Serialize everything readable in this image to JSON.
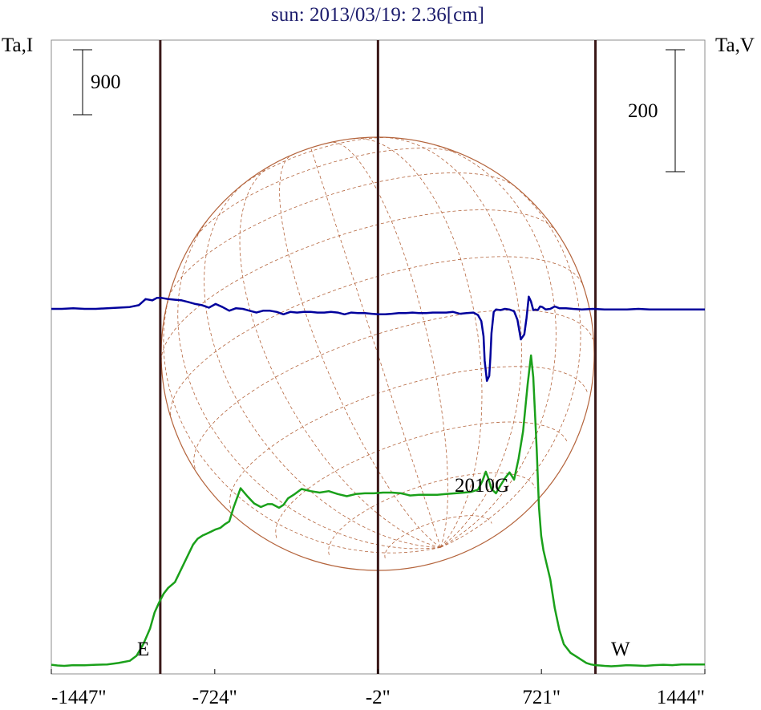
{
  "chart_data": {
    "type": "line",
    "title": "sun: 2013/03/19: 2.36[cm]",
    "left_axis_label": "Ta,I",
    "right_axis_label": "Ta,V",
    "x_tick_labels": [
      "-1447\"",
      "-724\"",
      "-2\"",
      "721\"",
      "1444\""
    ],
    "x_ticks": [
      -1447,
      -724,
      -2,
      721,
      1444
    ],
    "xlim": [
      -1447,
      1444
    ],
    "scale_bar_I": "900",
    "scale_bar_V": "200",
    "limb_markers": [
      {
        "label": "E",
        "x": -965
      },
      {
        "label": "W",
        "x": 960
      }
    ],
    "center_line_x": -2,
    "annotations": [
      {
        "text": "2010G",
        "x": 490
      }
    ],
    "colors": {
      "stokes_I": "#1aa01a",
      "stokes_V": "#00009c",
      "limb_lines": "#3a1818",
      "disk_grid": "#b4643c",
      "title": "#1c1c6c"
    },
    "series": [
      {
        "name": "Stokes I",
        "x": [
          -1447,
          -1420,
          -1390,
          -1350,
          -1300,
          -1250,
          -1200,
          -1150,
          -1100,
          -1070,
          -1040,
          -1010,
          -990,
          -970,
          -950,
          -930,
          -900,
          -860,
          -820,
          -800,
          -775,
          -760,
          -740,
          -720,
          -700,
          -680,
          -660,
          -640,
          -610,
          -580,
          -550,
          -520,
          -490,
          -470,
          -440,
          -420,
          -400,
          -370,
          -340,
          -300,
          -260,
          -220,
          -180,
          -140,
          -100,
          -60,
          -20,
          20,
          60,
          100,
          140,
          180,
          220,
          260,
          300,
          340,
          380,
          410,
          440,
          460,
          475,
          485,
          500,
          520,
          540,
          560,
          580,
          600,
          620,
          640,
          660,
          675,
          685,
          700,
          710,
          720,
          730,
          745,
          760,
          780,
          800,
          820,
          850,
          880,
          900,
          920,
          940,
          960,
          980,
          1000,
          1030,
          1060,
          1100,
          1140,
          1180,
          1220,
          1260,
          1300,
          1340,
          1380,
          1410,
          1444
        ],
        "y": [
          15,
          5,
          0,
          10,
          8,
          15,
          20,
          40,
          70,
          140,
          300,
          520,
          740,
          880,
          1000,
          1080,
          1160,
          1420,
          1680,
          1760,
          1810,
          1830,
          1860,
          1890,
          1910,
          1960,
          2000,
          2200,
          2460,
          2350,
          2250,
          2200,
          2240,
          2240,
          2190,
          2230,
          2320,
          2380,
          2450,
          2420,
          2400,
          2420,
          2380,
          2350,
          2380,
          2390,
          2390,
          2400,
          2400,
          2390,
          2360,
          2370,
          2370,
          2370,
          2380,
          2390,
          2400,
          2410,
          2440,
          2560,
          2690,
          2610,
          2450,
          2390,
          2500,
          2600,
          2680,
          2580,
          2870,
          3250,
          3900,
          4300,
          4000,
          3000,
          2200,
          1800,
          1600,
          1400,
          1200,
          800,
          500,
          300,
          180,
          120,
          80,
          40,
          20,
          10,
          5,
          0,
          -5,
          0,
          10,
          5,
          0,
          10,
          15,
          10,
          20,
          20,
          20,
          20
        ]
      },
      {
        "name": "Stokes V",
        "x": [
          -1447,
          -1400,
          -1350,
          -1300,
          -1250,
          -1200,
          -1150,
          -1100,
          -1060,
          -1030,
          -1000,
          -980,
          -960,
          -930,
          -900,
          -870,
          -840,
          -810,
          -780,
          -750,
          -720,
          -690,
          -660,
          -630,
          -600,
          -570,
          -540,
          -510,
          -480,
          -450,
          -420,
          -390,
          -360,
          -330,
          -300,
          -270,
          -240,
          -210,
          -180,
          -150,
          -120,
          -90,
          -60,
          -30,
          0,
          30,
          60,
          90,
          120,
          150,
          180,
          210,
          240,
          270,
          300,
          330,
          360,
          390,
          420,
          440,
          455,
          465,
          470,
          480,
          490,
          495,
          500,
          510,
          520,
          540,
          560,
          580,
          600,
          615,
          630,
          645,
          655,
          665,
          675,
          685,
          695,
          705,
          715,
          725,
          740,
          760,
          780,
          800,
          830,
          860,
          900,
          950,
          1000,
          1050,
          1100,
          1150,
          1200,
          1250,
          1300,
          1350,
          1400,
          1444
        ],
        "y": [
          0,
          0,
          1,
          0,
          0,
          1,
          2,
          3,
          6,
          16,
          14,
          18,
          18,
          16,
          15,
          14,
          11,
          8,
          6,
          2,
          8,
          3,
          -3,
          1,
          0,
          -3,
          -6,
          -3,
          -3,
          -5,
          -9,
          -5,
          -6,
          -5,
          -5,
          -6,
          -6,
          -5,
          -6,
          -9,
          -6,
          -7,
          -7,
          -8,
          -9,
          -9,
          -8,
          -7,
          -7,
          -6,
          -7,
          -7,
          -6,
          -6,
          -6,
          -5,
          -8,
          -7,
          -6,
          -10,
          -20,
          -45,
          -85,
          -118,
          -110,
          -80,
          -40,
          -5,
          -1,
          -2,
          0,
          -1,
          -4,
          -18,
          -50,
          -42,
          -15,
          20,
          12,
          -2,
          -1,
          -2,
          4,
          3,
          -1,
          0,
          4,
          1,
          1,
          0,
          -1,
          0,
          -1,
          -1,
          -1,
          0,
          -1,
          -1,
          -1,
          -1,
          -1,
          -1
        ]
      }
    ]
  }
}
